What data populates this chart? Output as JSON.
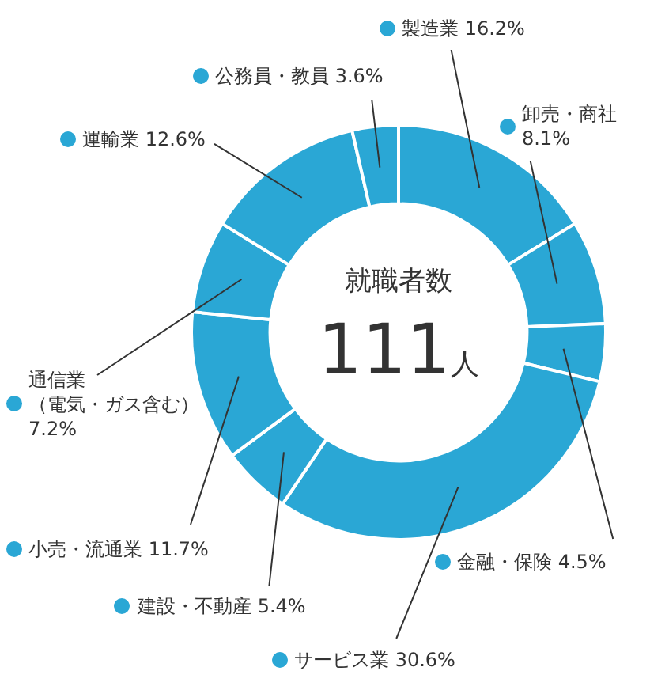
{
  "chart_data": {
    "type": "donut",
    "categories": [
      "製造業",
      "卸売・商社",
      "金融・保険",
      "サービス業",
      "建設・不動産",
      "小売・流通業",
      "通信業（電気・ガス含む）",
      "運輸業",
      "公務員・教員"
    ],
    "values": [
      16.2,
      8.1,
      4.5,
      30.6,
      5.4,
      11.7,
      7.2,
      12.6,
      3.6
    ],
    "value_labels": [
      "16.2%",
      "8.1%",
      "4.5%",
      "30.6%",
      "5.4%",
      "11.7%",
      "7.2%",
      "12.6%",
      "3.6%"
    ],
    "colors": [
      "#2aa7d5",
      "#2aa7d5",
      "#2aa7d5",
      "#2aa7d5",
      "#2aa7d5",
      "#2aa7d5",
      "#2aa7d5",
      "#2aa7d5",
      "#2aa7d5"
    ],
    "annotations": [
      "就職者数",
      "111人"
    ],
    "legend": "left"
  }
}
